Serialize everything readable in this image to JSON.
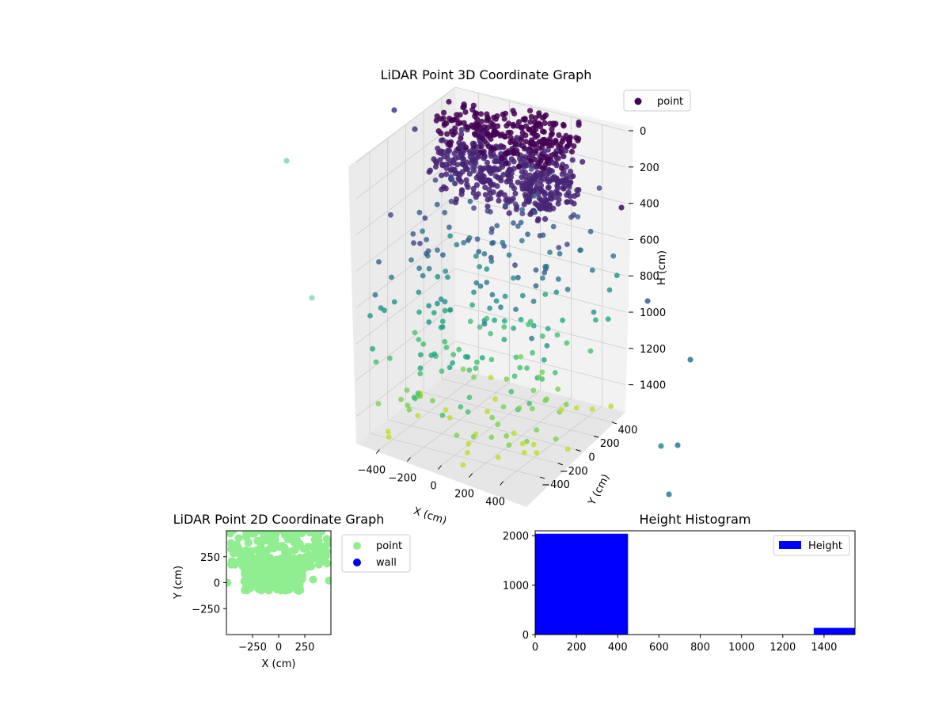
{
  "colors": {
    "viridis": [
      "#440154",
      "#482475",
      "#414487",
      "#355f8d",
      "#2a788e",
      "#21918c",
      "#22a884",
      "#44bf70",
      "#7ad151",
      "#bddf26"
    ],
    "light_green": "#90ee90",
    "wall_blue": "#0000ff",
    "hist_blue": "#0000ff",
    "pane_wall": "#f2f2f2",
    "pane_side": "#ebebeb",
    "grid": "#cccccc"
  },
  "chart_data": [
    {
      "id": "lidar-3d",
      "type": "scatter",
      "title": "LiDAR Point 3D Coordinate Graph",
      "xlabel": "X (cm)",
      "ylabel": "Y (cm)",
      "zlabel": "H (cm)",
      "xlim": [
        -550,
        550
      ],
      "ylim": [
        -550,
        550
      ],
      "zlim": [
        0,
        1550
      ],
      "z_inverted": true,
      "xticks": [
        -400,
        -200,
        0,
        200,
        400
      ],
      "yticks": [
        -400,
        -200,
        0,
        200,
        400
      ],
      "zticks": [
        0,
        200,
        400,
        600,
        800,
        1000,
        1200,
        1400
      ],
      "legend": [
        "point"
      ],
      "legend_position": "top-right",
      "colormap": "viridis",
      "series": [
        {
          "name": "point",
          "cluster": {
            "count": 2040,
            "h_range": [
              0,
              450
            ],
            "x_range": [
              -500,
              300
            ],
            "y_range": [
              150,
              550
            ]
          }
        }
      ]
    },
    {
      "id": "lidar-2d",
      "type": "scatter",
      "title": "LiDAR Point 2D Coordinate Graph",
      "xlabel": "X (cm)",
      "ylabel": "Y (cm)",
      "xlim": [
        -500,
        500
      ],
      "ylim": [
        -500,
        500
      ],
      "xticks": [
        -250,
        0,
        250
      ],
      "yticks": [
        -250,
        0,
        250
      ],
      "legend": [
        "point",
        "wall"
      ],
      "legend_position": "outside-right",
      "series": [
        {
          "name": "point",
          "color": "light_green"
        },
        {
          "name": "wall",
          "color": "wall_blue",
          "values": []
        }
      ]
    },
    {
      "id": "height-hist",
      "type": "bar",
      "title": "Height Histogram",
      "xlabel": "",
      "ylabel": "",
      "xlim": [
        0,
        1550
      ],
      "ylim": [
        0,
        2100
      ],
      "xticks": [
        0,
        200,
        400,
        600,
        800,
        1000,
        1200,
        1400
      ],
      "yticks": [
        0,
        1000,
        2000
      ],
      "legend": [
        "Height"
      ],
      "legend_position": "top-right",
      "bins": [
        [
          0,
          450
        ],
        [
          450,
          900
        ],
        [
          900,
          1350
        ],
        [
          1350,
          1550
        ]
      ],
      "values": [
        2040,
        5,
        8,
        135
      ]
    }
  ]
}
